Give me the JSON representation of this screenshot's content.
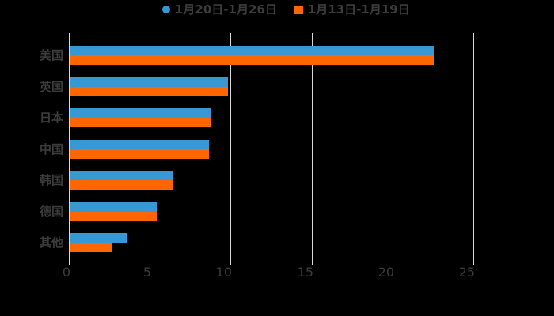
{
  "window": {
    "background": "#000000"
  },
  "legend": {
    "text_color": "#3C3C3C",
    "items": [
      {
        "label": "1月20日-1月26日",
        "marker": "circle-icon",
        "color": "#3898D4"
      },
      {
        "label": "1月13日-1月19日",
        "marker": "square-icon",
        "color": "#FF6600"
      }
    ]
  },
  "chart_data": {
    "type": "bar",
    "orientation": "horizontal",
    "title": "",
    "categories": [
      "美国",
      "英国",
      "日本",
      "中国",
      "韩国",
      "德国",
      "其他"
    ],
    "series": [
      {
        "name": "1月20日-1月26日",
        "color": "#3898D4",
        "values": [
          22.5,
          9.8,
          8.7,
          8.6,
          6.4,
          5.4,
          3.5
        ]
      },
      {
        "name": "1月13日-1月19日",
        "color": "#FF6600",
        "values": [
          22.5,
          9.8,
          8.7,
          8.6,
          6.4,
          5.4,
          2.6
        ]
      }
    ],
    "xlabel": "",
    "ylabel": "",
    "xlim": [
      0,
      25
    ],
    "x_ticks": [
      0,
      5,
      10,
      15,
      20,
      25
    ],
    "grid": true,
    "legend_position": "top",
    "axis_text_color": "#3C3C3C",
    "grid_color": "#D9D9D9",
    "axis_line_color": "#C9C9C9"
  }
}
